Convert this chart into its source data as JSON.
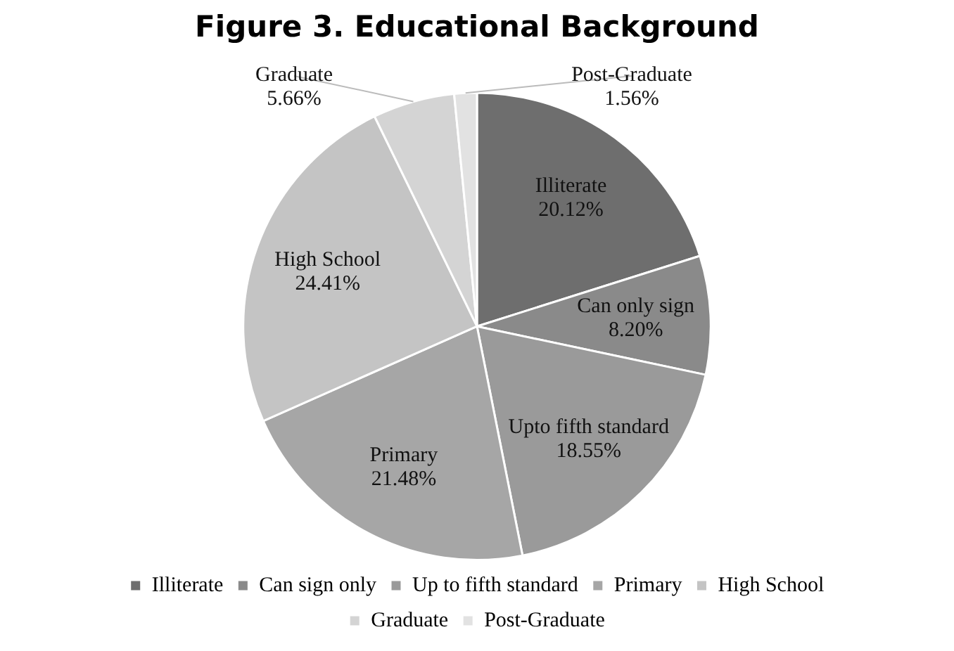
{
  "chart_data": {
    "type": "pie",
    "title": "Figure 3. Educational Background",
    "categories": [
      "Illiterate",
      "Can sign only",
      "Up to fifth standard",
      "Primary",
      "High School",
      "Graduate",
      "Post-Graduate"
    ],
    "values": [
      20.12,
      8.2,
      18.55,
      21.48,
      24.41,
      5.66,
      1.56
    ],
    "colors": [
      "#6e6e6e",
      "#8a8a8a",
      "#9a9a9a",
      "#a6a6a6",
      "#c4c4c4",
      "#d4d4d4",
      "#e2e2e2"
    ],
    "value_labels": [
      "Illiterate\n20.12%",
      "Can only sign\n8.20%",
      "Upto fifth standard\n18.55%",
      "Primary\n21.48%",
      "High School\n24.41%",
      "Graduate\n5.66%",
      "Post-Graduate\n1.56%"
    ],
    "legend": "bottom"
  }
}
